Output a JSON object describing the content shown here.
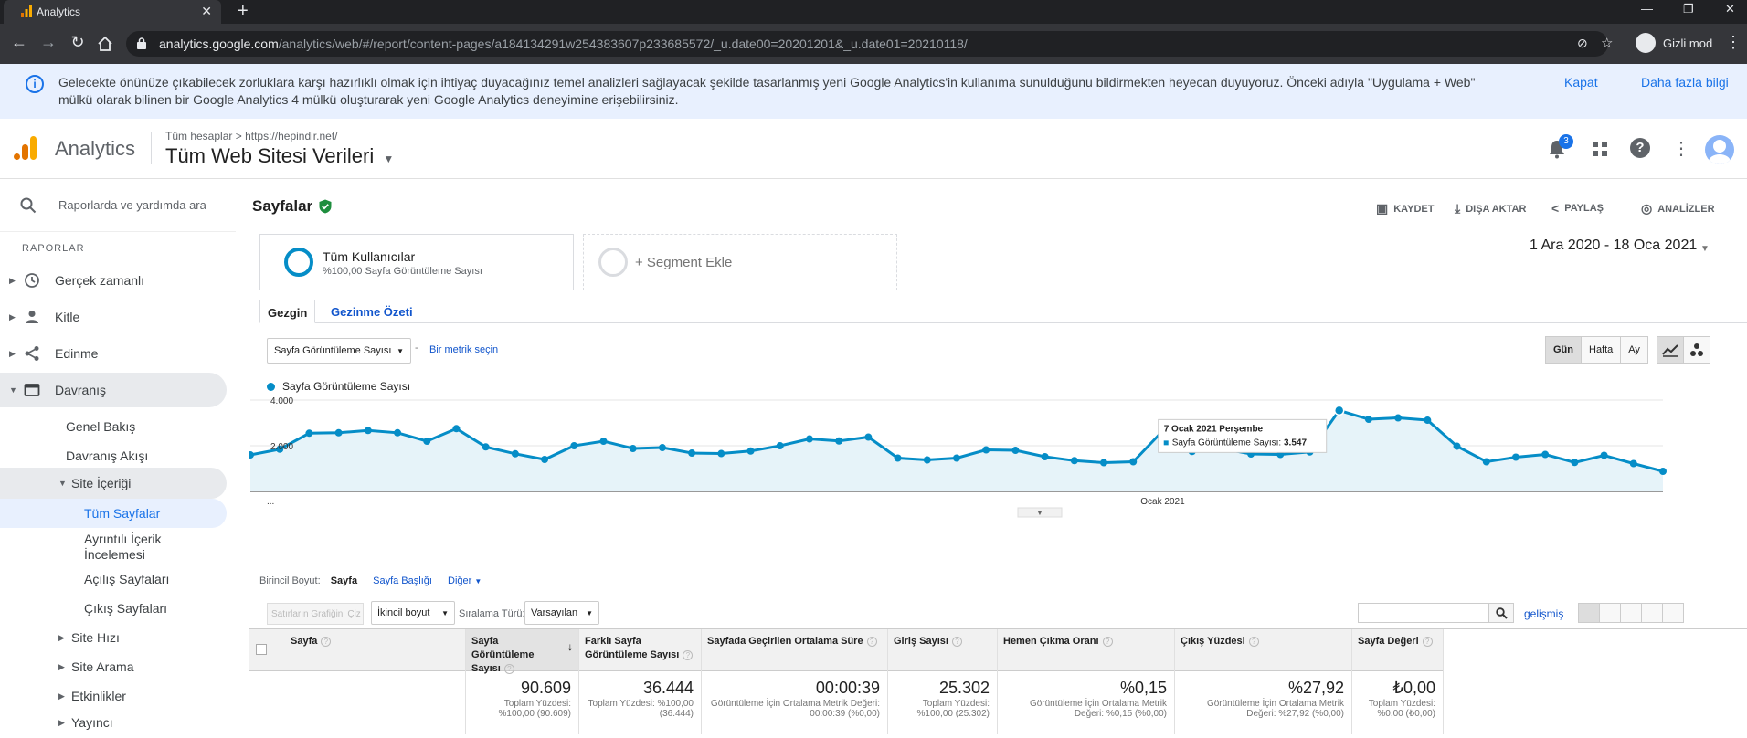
{
  "browser": {
    "tab_title": "Analytics",
    "url_host": "analytics.google.com",
    "url_path": "/analytics/web/#/report/content-pages/a184134291w254383607p233685572/_u.date00=20201201&_u.date01=20210118/",
    "incognito_label": "Gizli mod"
  },
  "banner": {
    "text": "Gelecekte önünüze çıkabilecek zorluklara karşı hazırlıklı olmak için ihtiyaç duyacağınız temel analizleri sağlayacak şekilde tasarlanmış yeni Google Analytics'in kullanıma sunulduğunu bildirmekten heyecan duyuyoruz. Önceki adıyla \"Uygulama + Web\" mülkü olarak bilinen bir Google Analytics 4 mülkü oluşturarak yeni Google Analytics deneyimine erişebilirsiniz.",
    "close_label": "Kapat",
    "more_label": "Daha fazla bilgi"
  },
  "header": {
    "product": "Analytics",
    "crumb_all": "Tüm hesaplar",
    "crumb_sep": ">",
    "crumb_site": "https://hepindir.net/",
    "view_name": "Tüm Web Sitesi Verileri",
    "notif_count": "3"
  },
  "sidebar": {
    "search_placeholder": "Raporlarda ve yardımda ara",
    "section": "RAPORLAR",
    "items": [
      {
        "label": "Gerçek zamanlı"
      },
      {
        "label": "Kitle"
      },
      {
        "label": "Edinme"
      },
      {
        "label": "Davranış"
      },
      {
        "label": "Genel Bakış"
      },
      {
        "label": "Davranış Akışı"
      },
      {
        "label": "Site İçeriği"
      },
      {
        "label": "Tüm Sayfalar"
      },
      {
        "label": "Ayrıntılı İçerik İncelemesi"
      },
      {
        "label": "Açılış Sayfaları"
      },
      {
        "label": "Çıkış Sayfaları"
      },
      {
        "label": "Site Hızı"
      },
      {
        "label": "Site Arama"
      },
      {
        "label": "Etkinlikler"
      },
      {
        "label": "Yayıncı"
      }
    ]
  },
  "report": {
    "title": "Sayfalar",
    "save": "KAYDET",
    "export": "DIŞA AKTAR",
    "share": "PAYLAŞ",
    "insights": "ANALİZLER",
    "segment_name": "Tüm Kullanıcılar",
    "segment_sub": "%100,00 Sayfa Görüntüleme Sayısı",
    "segment_add": "+ Segment Ekle",
    "date_range": "1 Ara 2020 - 18 Oca 2021",
    "tab_explorer": "Gezgin",
    "tab_nav": "Gezinme Özeti",
    "metric_select": "Sayfa Görüntüleme Sayısı",
    "metric_dash": "-",
    "metric_second": "Bir metrik seçin",
    "period_day": "Gün",
    "period_week": "Hafta",
    "period_month": "Ay"
  },
  "chart_data": {
    "type": "line",
    "legend": "Sayfa Görüntüleme Sayısı",
    "y_ticks": [
      "4.000",
      "2.000"
    ],
    "ylim": [
      0,
      4000
    ],
    "x_label_start": "...",
    "x_label_mid": "Ocak 2021",
    "color": "#058dc7",
    "x": [
      "1 Ara",
      "2 Ara",
      "3 Ara",
      "4 Ara",
      "5 Ara",
      "6 Ara",
      "7 Ara",
      "8 Ara",
      "9 Ara",
      "10 Ara",
      "11 Ara",
      "12 Ara",
      "13 Ara",
      "14 Ara",
      "15 Ara",
      "16 Ara",
      "17 Ara",
      "18 Ara",
      "19 Ara",
      "20 Ara",
      "21 Ara",
      "22 Ara",
      "23 Ara",
      "24 Ara",
      "25 Ara",
      "26 Ara",
      "27 Ara",
      "28 Ara",
      "29 Ara",
      "30 Ara",
      "31 Ara",
      "1 Oca",
      "2 Oca",
      "3 Oca",
      "4 Oca",
      "5 Oca",
      "6 Oca",
      "7 Oca",
      "8 Oca",
      "9 Oca",
      "10 Oca",
      "11 Oca",
      "12 Oca",
      "13 Oca",
      "14 Oca",
      "15 Oca",
      "16 Oca",
      "17 Oca",
      "18 Oca"
    ],
    "values": [
      1600,
      1850,
      2550,
      2570,
      2670,
      2570,
      2200,
      2750,
      1950,
      1650,
      1400,
      2000,
      2200,
      1880,
      1920,
      1680,
      1660,
      1770,
      2000,
      2300,
      2210,
      2380,
      1460,
      1380,
      1460,
      1820,
      1800,
      1520,
      1350,
      1260,
      1300,
      2650,
      1750,
      1880,
      1640,
      1620,
      1730,
      3547,
      3160,
      3220,
      3120,
      1980,
      1300,
      1500,
      1620,
      1270,
      1580,
      1220,
      880
    ],
    "tooltip": {
      "title": "7 Ocak 2021 Perşembe",
      "label": "Sayfa Görüntüleme Sayısı:",
      "value": "3.547"
    }
  },
  "table": {
    "dim_label": "Birincil Boyut:",
    "dim_active": "Sayfa",
    "dim_title": "Sayfa Başlığı",
    "dim_other": "Diğer",
    "plot_rows": "Satırların Grafiğini Çiz",
    "secondary": "İkincil boyut",
    "sort_label": "Sıralama Türü:",
    "sort_value": "Varsayılan",
    "advanced": "gelişmiş",
    "columns": [
      {
        "header": "Sayfa",
        "value": "",
        "sub": ""
      },
      {
        "header": "Sayfa Görüntüleme Sayısı",
        "value": "90.609",
        "sub": "Toplam Yüzdesi: %100,00 (90.609)"
      },
      {
        "header": "Farklı Sayfa Görüntüleme Sayısı",
        "value": "36.444",
        "sub": "Toplam Yüzdesi: %100,00 (36.444)"
      },
      {
        "header": "Sayfada Geçirilen Ortalama Süre",
        "value": "00:00:39",
        "sub": "Görüntüleme İçin Ortalama Metrik Değeri: 00:00:39 (%0,00)"
      },
      {
        "header": "Giriş Sayısı",
        "value": "25.302",
        "sub": "Toplam Yüzdesi: %100,00 (25.302)"
      },
      {
        "header": "Hemen Çıkma Oranı",
        "value": "%0,15",
        "sub": "Görüntüleme İçin Ortalama Metrik Değeri: %0,15 (%0,00)"
      },
      {
        "header": "Çıkış Yüzdesi",
        "value": "%27,92",
        "sub": "Görüntüleme İçin Ortalama Metrik Değeri: %27,92 (%0,00)"
      },
      {
        "header": "Sayfa Değeri",
        "value": "₺0,00",
        "sub": "Toplam Yüzdesi: %0,00 (₺0,00)"
      }
    ]
  }
}
